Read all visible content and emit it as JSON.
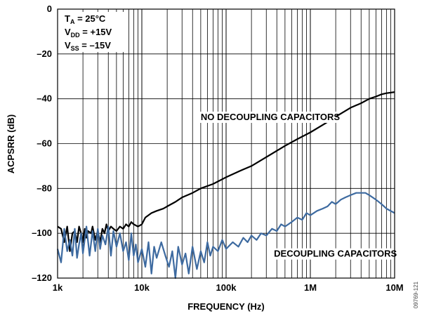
{
  "chart_data": {
    "type": "line",
    "xlabel": "FREQUENCY (Hz)",
    "ylabel": "ACPSRR (dB)",
    "xscale": "log",
    "xlim": [
      1000,
      10000000
    ],
    "ylim": [
      -120,
      0
    ],
    "grid": true,
    "x_ticks": [
      {
        "value": 1000,
        "label": "1k"
      },
      {
        "value": 10000,
        "label": "10k"
      },
      {
        "value": 100000,
        "label": "100k"
      },
      {
        "value": 1000000,
        "label": "1M"
      },
      {
        "value": 10000000,
        "label": "10M"
      }
    ],
    "y_ticks": [
      {
        "value": 0,
        "label": "0"
      },
      {
        "value": -20,
        "label": "–20"
      },
      {
        "value": -40,
        "label": "–40"
      },
      {
        "value": -60,
        "label": "–60"
      },
      {
        "value": -80,
        "label": "–80"
      },
      {
        "value": -100,
        "label": "–100"
      },
      {
        "value": -120,
        "label": "–120"
      }
    ],
    "conditions": {
      "ta": {
        "main": "T",
        "sub": "A",
        "rest": " = 25°C"
      },
      "vdd": {
        "main": "V",
        "sub": "DD",
        "rest": " = +15V"
      },
      "vss": {
        "main": "V",
        "sub": "SS",
        "rest": " = –15V"
      }
    },
    "series": [
      {
        "name": "NO DECOUPLING CAPACITORS",
        "color": "#000000",
        "points": [
          [
            1000,
            -97
          ],
          [
            1100,
            -98
          ],
          [
            1200,
            -104
          ],
          [
            1300,
            -97
          ],
          [
            1400,
            -108
          ],
          [
            1500,
            -100
          ],
          [
            1600,
            -99
          ],
          [
            1700,
            -104
          ],
          [
            1800,
            -97
          ],
          [
            1900,
            -100
          ],
          [
            2000,
            -104
          ],
          [
            2100,
            -98
          ],
          [
            2200,
            -102
          ],
          [
            2300,
            -99
          ],
          [
            2500,
            -100
          ],
          [
            2600,
            -97
          ],
          [
            2800,
            -103
          ],
          [
            3000,
            -99
          ],
          [
            3200,
            -104
          ],
          [
            3400,
            -98
          ],
          [
            3600,
            -100
          ],
          [
            3800,
            -96
          ],
          [
            4000,
            -99
          ],
          [
            4300,
            -97
          ],
          [
            4600,
            -98
          ],
          [
            5000,
            -99
          ],
          [
            5500,
            -97
          ],
          [
            6000,
            -98
          ],
          [
            6500,
            -96
          ],
          [
            7000,
            -97
          ],
          [
            7500,
            -95
          ],
          [
            8000,
            -96
          ],
          [
            9000,
            -97
          ],
          [
            10000,
            -96
          ],
          [
            11000,
            -93
          ],
          [
            13000,
            -91
          ],
          [
            15000,
            -90
          ],
          [
            18000,
            -89
          ],
          [
            20000,
            -88
          ],
          [
            25000,
            -86
          ],
          [
            30000,
            -84
          ],
          [
            40000,
            -82
          ],
          [
            50000,
            -80
          ],
          [
            70000,
            -78
          ],
          [
            100000,
            -75
          ],
          [
            150000,
            -72
          ],
          [
            200000,
            -70
          ],
          [
            300000,
            -66
          ],
          [
            500000,
            -61
          ],
          [
            700000,
            -58
          ],
          [
            1000000,
            -55
          ],
          [
            1500000,
            -51
          ],
          [
            2000000,
            -48
          ],
          [
            3000000,
            -44
          ],
          [
            4000000,
            -42
          ],
          [
            5000000,
            -40
          ],
          [
            6000000,
            -39
          ],
          [
            7000000,
            -38
          ],
          [
            8000000,
            -37.5
          ],
          [
            10000000,
            -37
          ]
        ]
      },
      {
        "name": "DECOUPLING CAPACITORS",
        "color": "#3d6aa0",
        "points": [
          [
            1000,
            -107
          ],
          [
            1100,
            -113
          ],
          [
            1200,
            -98
          ],
          [
            1300,
            -108
          ],
          [
            1400,
            -103
          ],
          [
            1500,
            -110
          ],
          [
            1600,
            -98
          ],
          [
            1700,
            -111
          ],
          [
            1800,
            -105
          ],
          [
            1900,
            -100
          ],
          [
            2000,
            -109
          ],
          [
            2200,
            -97
          ],
          [
            2400,
            -110
          ],
          [
            2600,
            -99
          ],
          [
            2800,
            -108
          ],
          [
            3000,
            -98
          ],
          [
            3200,
            -107
          ],
          [
            3400,
            -101
          ],
          [
            3700,
            -105
          ],
          [
            4000,
            -97
          ],
          [
            4300,
            -110
          ],
          [
            4600,
            -99
          ],
          [
            5000,
            -106
          ],
          [
            5500,
            -100
          ],
          [
            6000,
            -108
          ],
          [
            6500,
            -104
          ],
          [
            7000,
            -112
          ],
          [
            7500,
            -100
          ],
          [
            8000,
            -110
          ],
          [
            8500,
            -105
          ],
          [
            9000,
            -113
          ],
          [
            10000,
            -107
          ],
          [
            11000,
            -115
          ],
          [
            12000,
            -104
          ],
          [
            13000,
            -118
          ],
          [
            14000,
            -106
          ],
          [
            15000,
            -111
          ],
          [
            17000,
            -104
          ],
          [
            19000,
            -110
          ],
          [
            21000,
            -115
          ],
          [
            23000,
            -108
          ],
          [
            25000,
            -120
          ],
          [
            27000,
            -106
          ],
          [
            30000,
            -114
          ],
          [
            33000,
            -109
          ],
          [
            36000,
            -118
          ],
          [
            40000,
            -106
          ],
          [
            45000,
            -116
          ],
          [
            50000,
            -108
          ],
          [
            55000,
            -113
          ],
          [
            60000,
            -104
          ],
          [
            65000,
            -110
          ],
          [
            70000,
            -106
          ],
          [
            80000,
            -108
          ],
          [
            90000,
            -103
          ],
          [
            100000,
            -107
          ],
          [
            120000,
            -104
          ],
          [
            140000,
            -106
          ],
          [
            160000,
            -102
          ],
          [
            180000,
            -104
          ],
          [
            200000,
            -101
          ],
          [
            230000,
            -103
          ],
          [
            260000,
            -100
          ],
          [
            300000,
            -101
          ],
          [
            350000,
            -98
          ],
          [
            400000,
            -99
          ],
          [
            450000,
            -96
          ],
          [
            500000,
            -97
          ],
          [
            600000,
            -95
          ],
          [
            700000,
            -93
          ],
          [
            800000,
            -94
          ],
          [
            900000,
            -91
          ],
          [
            1000000,
            -92
          ],
          [
            1200000,
            -90
          ],
          [
            1400000,
            -89
          ],
          [
            1600000,
            -88
          ],
          [
            1800000,
            -86
          ],
          [
            2000000,
            -87
          ],
          [
            2300000,
            -85
          ],
          [
            2600000,
            -84
          ],
          [
            3000000,
            -83
          ],
          [
            3500000,
            -82
          ],
          [
            4000000,
            -82
          ],
          [
            4500000,
            -82
          ],
          [
            5000000,
            -83
          ],
          [
            6000000,
            -85
          ],
          [
            7000000,
            -87
          ],
          [
            8000000,
            -89
          ],
          [
            10000000,
            -91
          ]
        ]
      }
    ],
    "annotations": [
      {
        "series": 0,
        "text": "NO DECOUPLING CAPACITORS",
        "x": 50000,
        "y": -49.5
      },
      {
        "series": 1,
        "text": "DECOUPLING CAPACITORS",
        "x": 370000,
        "y": -110.5
      }
    ],
    "figure_id": "09769-121"
  }
}
